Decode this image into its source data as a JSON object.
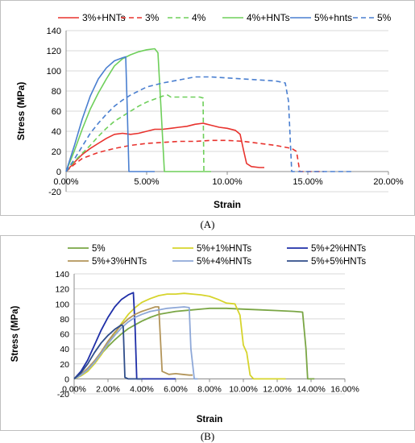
{
  "captions": {
    "a": "(A)",
    "b": "(B)"
  },
  "chart_data": [
    {
      "type": "line",
      "xlabel": "Strain",
      "ylabel": "Stress (MPa)",
      "xlim": [
        0,
        0.2
      ],
      "ylim": [
        -20,
        140
      ],
      "xticks": [
        0,
        0.05,
        0.1,
        0.15,
        0.2
      ],
      "xtick_labels": [
        "0.00%",
        "5.00%",
        "10.00%",
        "15.00%",
        "20.00%"
      ],
      "yticks": [
        -20,
        0,
        20,
        40,
        60,
        80,
        100,
        120,
        140
      ],
      "ytick_labels": [
        "-20",
        "0",
        "20",
        "40",
        "60",
        "80",
        "100",
        "120",
        "140"
      ],
      "grid": true,
      "legend_position": "top",
      "series": [
        {
          "name": "3%+HNTs",
          "color": "#e8322d",
          "dash": "solid",
          "x": [
            0,
            0.005,
            0.01,
            0.015,
            0.02,
            0.025,
            0.03,
            0.035,
            0.04,
            0.045,
            0.05,
            0.055,
            0.06,
            0.065,
            0.07,
            0.075,
            0.08,
            0.085,
            0.09,
            0.095,
            0.1,
            0.105,
            0.108,
            0.11,
            0.112,
            0.115,
            0.12,
            0.123
          ],
          "y": [
            0,
            9,
            17,
            23,
            28,
            33,
            37,
            38,
            37,
            38,
            40,
            42,
            42,
            43,
            44,
            45,
            47,
            48,
            46,
            44,
            43,
            41,
            37,
            22,
            8,
            5,
            4,
            4
          ]
        },
        {
          "name": "3%",
          "color": "#e8322d",
          "dash": "dashed",
          "x": [
            0,
            0.005,
            0.01,
            0.02,
            0.03,
            0.04,
            0.05,
            0.06,
            0.07,
            0.08,
            0.09,
            0.1,
            0.11,
            0.12,
            0.13,
            0.14,
            0.143,
            0.145,
            0.15,
            0.16
          ],
          "y": [
            0,
            7,
            13,
            19,
            23,
            26,
            28,
            29,
            30,
            30,
            31,
            31,
            30,
            28,
            26,
            23,
            20,
            0,
            0,
            0
          ]
        },
        {
          "name": "4%",
          "color": "#6ecf5a",
          "dash": "dashed",
          "x": [
            0,
            0.005,
            0.01,
            0.015,
            0.02,
            0.025,
            0.03,
            0.035,
            0.04,
            0.045,
            0.05,
            0.055,
            0.06,
            0.063,
            0.065,
            0.07,
            0.075,
            0.08,
            0.083,
            0.085,
            0.0855
          ],
          "y": [
            0,
            10,
            18,
            26,
            35,
            43,
            50,
            55,
            60,
            65,
            69,
            72,
            75,
            76,
            74,
            74,
            74,
            74,
            74,
            73,
            0
          ]
        },
        {
          "name": "4%+HNTs",
          "color": "#6ecf5a",
          "dash": "solid",
          "x": [
            0,
            0.005,
            0.01,
            0.015,
            0.02,
            0.025,
            0.03,
            0.035,
            0.04,
            0.045,
            0.05,
            0.055,
            0.057,
            0.059,
            0.061,
            0.07,
            0.08,
            0.09
          ],
          "y": [
            0,
            20,
            42,
            62,
            78,
            92,
            105,
            112,
            116,
            119,
            121,
            122,
            118,
            60,
            0,
            0,
            0,
            0
          ]
        },
        {
          "name": "5%+hnts",
          "color": "#4a7fd0",
          "dash": "solid",
          "x": [
            0,
            0.005,
            0.01,
            0.015,
            0.02,
            0.025,
            0.03,
            0.035,
            0.037,
            0.038,
            0.039,
            0.045,
            0.05,
            0.055
          ],
          "y": [
            0,
            25,
            52,
            75,
            92,
            103,
            110,
            113,
            114,
            60,
            0,
            0,
            0,
            0
          ]
        },
        {
          "name": "5%",
          "color": "#4a7fd0",
          "dash": "dashed",
          "x": [
            0,
            0.005,
            0.01,
            0.015,
            0.02,
            0.025,
            0.03,
            0.035,
            0.04,
            0.045,
            0.05,
            0.06,
            0.07,
            0.08,
            0.09,
            0.1,
            0.11,
            0.12,
            0.13,
            0.136,
            0.138,
            0.14,
            0.15,
            0.16,
            0.17,
            0.178
          ],
          "y": [
            0,
            12,
            25,
            38,
            48,
            57,
            65,
            71,
            76,
            80,
            84,
            88,
            91,
            94,
            94,
            93,
            92,
            91,
            90,
            88,
            70,
            0,
            0,
            0,
            0,
            0
          ]
        }
      ]
    },
    {
      "type": "line",
      "xlabel": "Strain",
      "ylabel": "Stress (MPa)",
      "xlim": [
        0,
        0.16
      ],
      "ylim": [
        -20,
        140
      ],
      "xticks": [
        0,
        0.02,
        0.04,
        0.06,
        0.08,
        0.1,
        0.12,
        0.14,
        0.16
      ],
      "xtick_labels": [
        "0.00%",
        "2.00%",
        "4.00%",
        "6.00%",
        "8.00%",
        "10.00%",
        "12.00%",
        "14.00%",
        "16.00%"
      ],
      "yticks": [
        -20,
        0,
        20,
        40,
        60,
        80,
        100,
        120,
        140
      ],
      "ytick_labels": [
        "-20",
        "0",
        "20",
        "40",
        "60",
        "80",
        "100",
        "120",
        "140"
      ],
      "grid": true,
      "legend_position": "top",
      "series": [
        {
          "name": "5%",
          "color": "#7aa645",
          "dash": "solid",
          "x": [
            0,
            0.004,
            0.008,
            0.012,
            0.016,
            0.02,
            0.024,
            0.028,
            0.032,
            0.036,
            0.04,
            0.045,
            0.05,
            0.06,
            0.07,
            0.08,
            0.09,
            0.1,
            0.11,
            0.12,
            0.13,
            0.135,
            0.137,
            0.138,
            0.14,
            0.142
          ],
          "y": [
            0,
            5,
            12,
            22,
            33,
            43,
            52,
            60,
            67,
            72,
            77,
            82,
            86,
            90,
            92,
            94,
            94,
            93,
            92,
            91,
            90,
            89,
            40,
            0,
            0,
            0
          ]
        },
        {
          "name": "5%+1%HNTs",
          "color": "#d6d42c",
          "dash": "solid",
          "x": [
            0,
            0.004,
            0.008,
            0.012,
            0.016,
            0.02,
            0.024,
            0.028,
            0.032,
            0.036,
            0.04,
            0.045,
            0.05,
            0.055,
            0.06,
            0.065,
            0.07,
            0.075,
            0.08,
            0.085,
            0.09,
            0.095,
            0.098,
            0.1,
            0.102,
            0.104,
            0.106,
            0.11,
            0.115,
            0.12,
            0.125
          ],
          "y": [
            0,
            4,
            10,
            20,
            32,
            46,
            60,
            74,
            86,
            95,
            102,
            107,
            111,
            113,
            113,
            114,
            113,
            112,
            110,
            106,
            101,
            100,
            85,
            45,
            35,
            5,
            0,
            0,
            0,
            0,
            0
          ]
        },
        {
          "name": "5%+2%HNTs",
          "color": "#1f2fa8",
          "dash": "solid",
          "x": [
            0,
            0.004,
            0.008,
            0.012,
            0.016,
            0.02,
            0.024,
            0.028,
            0.032,
            0.035,
            0.036,
            0.037,
            0.04,
            0.045,
            0.05,
            0.055,
            0.06
          ],
          "y": [
            0,
            10,
            25,
            45,
            65,
            82,
            96,
            106,
            112,
            115,
            70,
            0,
            0,
            0,
            0,
            0,
            0
          ]
        },
        {
          "name": "5%+3%HNTs",
          "color": "#b3955a",
          "dash": "solid",
          "x": [
            0,
            0.004,
            0.008,
            0.012,
            0.016,
            0.02,
            0.024,
            0.028,
            0.032,
            0.036,
            0.04,
            0.044,
            0.048,
            0.05,
            0.052,
            0.056,
            0.06,
            0.064,
            0.068,
            0.07
          ],
          "y": [
            0,
            6,
            14,
            24,
            36,
            50,
            62,
            72,
            80,
            86,
            90,
            93,
            96,
            96,
            10,
            6,
            7,
            6,
            5,
            5
          ]
        },
        {
          "name": "5%+4%HNTs",
          "color": "#8ea8d8",
          "dash": "solid",
          "x": [
            0,
            0.004,
            0.008,
            0.012,
            0.016,
            0.02,
            0.024,
            0.028,
            0.032,
            0.036,
            0.04,
            0.045,
            0.05,
            0.055,
            0.06,
            0.065,
            0.068,
            0.069,
            0.071,
            0.073
          ],
          "y": [
            0,
            5,
            12,
            22,
            34,
            47,
            58,
            68,
            76,
            82,
            86,
            90,
            92,
            94,
            95,
            96,
            95,
            40,
            0,
            0
          ]
        },
        {
          "name": "5%+5%HNTs",
          "color": "#2f4d8a",
          "dash": "solid",
          "x": [
            0,
            0.004,
            0.008,
            0.012,
            0.016,
            0.02,
            0.024,
            0.028,
            0.029,
            0.03,
            0.032,
            0.036,
            0.04
          ],
          "y": [
            0,
            8,
            20,
            35,
            48,
            58,
            66,
            72,
            70,
            2,
            0,
            0,
            0
          ]
        }
      ]
    }
  ]
}
